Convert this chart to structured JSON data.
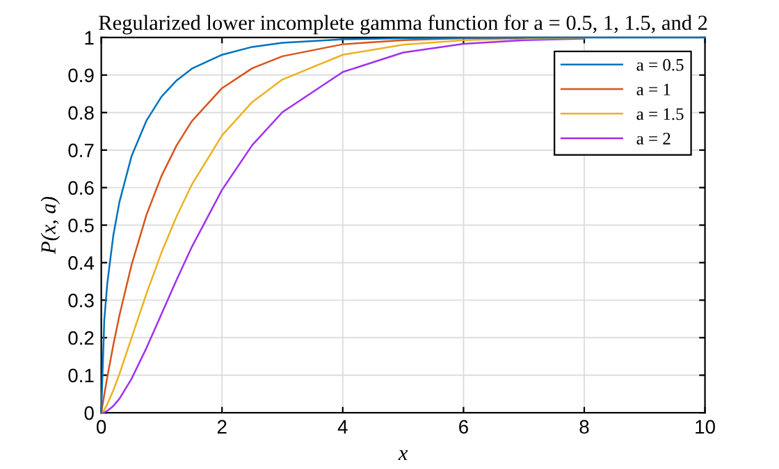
{
  "chart_data": {
    "type": "line",
    "title": "Regularized lower incomplete gamma function for a = 0.5, 1, 1.5, and 2",
    "xlabel": "x",
    "ylabel": "P(x, a)",
    "x": [
      0,
      0.05,
      0.1,
      0.2,
      0.3,
      0.5,
      0.75,
      1,
      1.25,
      1.5,
      2,
      2.5,
      3,
      4,
      5,
      6,
      7,
      8,
      10
    ],
    "series": [
      {
        "name": "a = 0.5",
        "color": "#0072bd",
        "values": [
          0,
          0.248,
          0.345,
          0.473,
          0.561,
          0.683,
          0.779,
          0.843,
          0.886,
          0.917,
          0.954,
          0.975,
          0.986,
          0.995,
          0.998,
          0.999,
          1,
          1,
          1
        ]
      },
      {
        "name": "a = 1",
        "color": "#d95319",
        "values": [
          0,
          0.049,
          0.095,
          0.181,
          0.259,
          0.393,
          0.528,
          0.632,
          0.713,
          0.777,
          0.865,
          0.918,
          0.95,
          0.982,
          0.993,
          0.998,
          0.999,
          null,
          null
        ]
      },
      {
        "name": "a = 1.5",
        "color": "#edb120",
        "values": [
          0,
          0.008,
          0.023,
          0.06,
          0.103,
          0.199,
          0.318,
          0.428,
          0.524,
          0.608,
          0.739,
          0.828,
          0.888,
          0.954,
          0.981,
          0.993,
          0.997,
          0.999,
          null
        ]
      },
      {
        "name": "a = 2",
        "color": "#a030f0",
        "values": [
          0,
          0.001,
          0.005,
          0.018,
          0.037,
          0.09,
          0.173,
          0.264,
          0.355,
          0.442,
          0.594,
          0.713,
          0.801,
          0.908,
          0.96,
          0.983,
          0.993,
          0.997,
          null
        ]
      }
    ],
    "xlim": [
      0,
      10
    ],
    "xticks": [
      0,
      2,
      4,
      6,
      8,
      10
    ],
    "ylim": [
      0,
      1
    ],
    "yticks": [
      0,
      0.1,
      0.2,
      0.3,
      0.4,
      0.5,
      0.6,
      0.7,
      0.8,
      0.9,
      1
    ],
    "grid": true,
    "legend": "top right",
    "marker": "none",
    "line_style": "solid"
  }
}
